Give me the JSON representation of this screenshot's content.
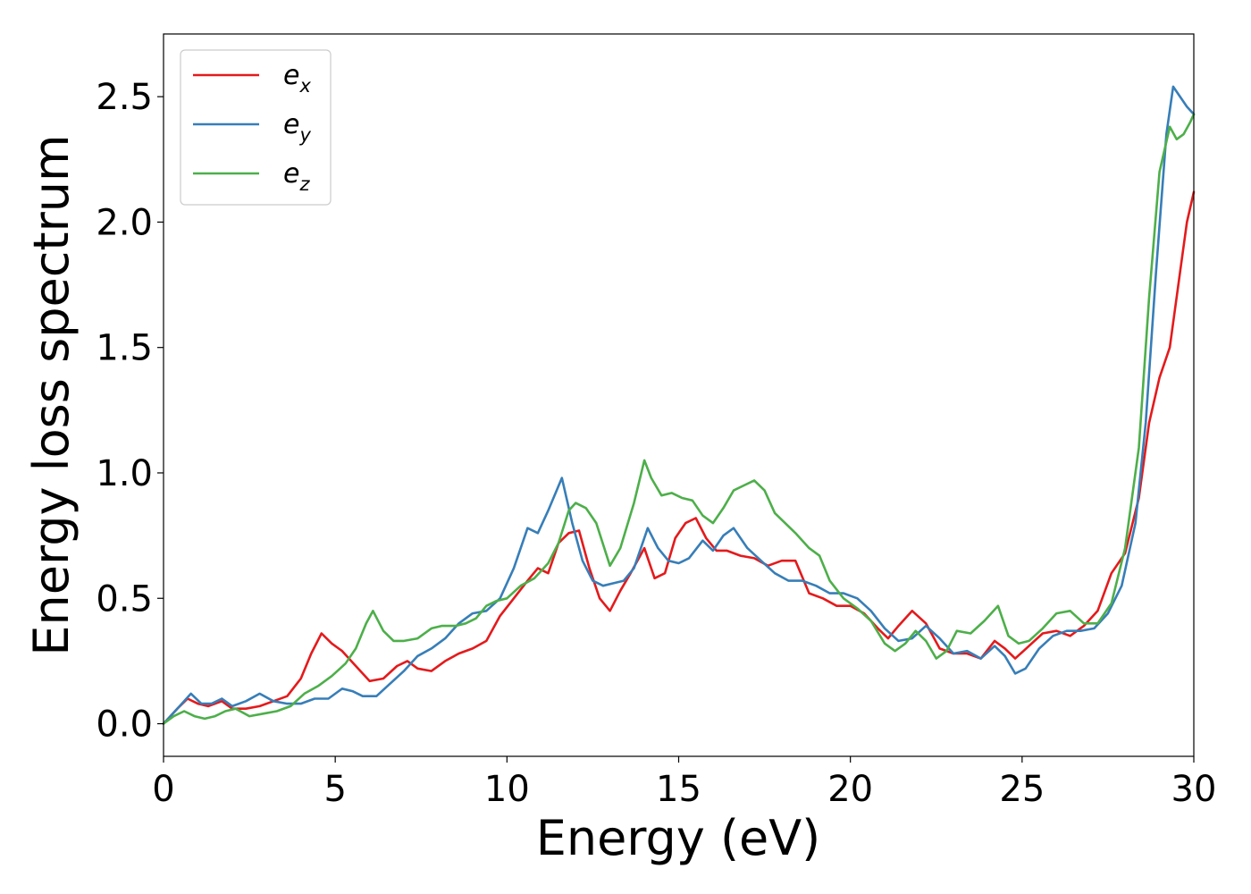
{
  "chart_data": {
    "type": "line",
    "title": "",
    "xlabel": "Energy (eV)",
    "ylabel": "Energy loss spectrum",
    "xlim": [
      0,
      30
    ],
    "ylim": [
      -0.13,
      2.75
    ],
    "xticks": [
      0,
      5,
      10,
      15,
      20,
      25,
      30
    ],
    "xtick_labels": [
      "0",
      "5",
      "10",
      "15",
      "20",
      "25",
      "30"
    ],
    "yticks": [
      0,
      0.5,
      1.0,
      1.5,
      2.0,
      2.5
    ],
    "ytick_labels": [
      "0.0",
      "0.5",
      "1.0",
      "1.5",
      "2.0",
      "2.5"
    ],
    "grid": false,
    "legend_position": "top-left",
    "series": [
      {
        "name": "e_x",
        "legend_base": "e",
        "legend_sub": "x",
        "color": "#e41a1c",
        "x": [
          0,
          0.4,
          0.7,
          1.0,
          1.3,
          1.7,
          2.0,
          2.4,
          2.8,
          3.2,
          3.6,
          4.0,
          4.3,
          4.6,
          4.9,
          5.2,
          5.6,
          6.0,
          6.4,
          6.8,
          7.1,
          7.4,
          7.8,
          8.2,
          8.6,
          9.0,
          9.4,
          9.8,
          10.2,
          10.6,
          10.9,
          11.2,
          11.5,
          11.8,
          12.1,
          12.4,
          12.7,
          13.0,
          13.3,
          13.6,
          14.0,
          14.3,
          14.6,
          14.9,
          15.2,
          15.5,
          15.8,
          16.1,
          16.4,
          16.8,
          17.2,
          17.6,
          18.0,
          18.4,
          18.8,
          19.2,
          19.6,
          20.0,
          20.4,
          20.8,
          21.1,
          21.4,
          21.8,
          22.2,
          22.6,
          23.0,
          23.4,
          23.8,
          24.2,
          24.5,
          24.8,
          25.2,
          25.6,
          26.0,
          26.4,
          26.8,
          27.2,
          27.6,
          28.0,
          28.4,
          28.7,
          29.0,
          29.3,
          29.6,
          29.8,
          30.0
        ],
        "values": [
          0.0,
          0.06,
          0.1,
          0.08,
          0.07,
          0.09,
          0.06,
          0.06,
          0.07,
          0.09,
          0.11,
          0.18,
          0.28,
          0.36,
          0.32,
          0.29,
          0.23,
          0.17,
          0.18,
          0.23,
          0.25,
          0.22,
          0.21,
          0.25,
          0.28,
          0.3,
          0.33,
          0.43,
          0.5,
          0.57,
          0.62,
          0.6,
          0.72,
          0.76,
          0.77,
          0.62,
          0.5,
          0.45,
          0.53,
          0.6,
          0.7,
          0.58,
          0.6,
          0.74,
          0.8,
          0.82,
          0.74,
          0.69,
          0.69,
          0.67,
          0.66,
          0.63,
          0.65,
          0.65,
          0.52,
          0.5,
          0.47,
          0.47,
          0.44,
          0.38,
          0.34,
          0.39,
          0.45,
          0.4,
          0.3,
          0.28,
          0.28,
          0.26,
          0.33,
          0.3,
          0.26,
          0.31,
          0.36,
          0.37,
          0.35,
          0.39,
          0.45,
          0.6,
          0.68,
          0.9,
          1.2,
          1.38,
          1.5,
          1.8,
          2.0,
          2.12
        ]
      },
      {
        "name": "e_y",
        "legend_base": "e",
        "legend_sub": "y",
        "color": "#377eb8",
        "x": [
          0,
          0.4,
          0.8,
          1.1,
          1.4,
          1.7,
          2.0,
          2.4,
          2.8,
          3.2,
          3.6,
          4.0,
          4.4,
          4.8,
          5.2,
          5.5,
          5.8,
          6.2,
          6.6,
          7.0,
          7.4,
          7.8,
          8.2,
          8.6,
          9.0,
          9.4,
          9.8,
          10.2,
          10.6,
          10.9,
          11.2,
          11.6,
          11.9,
          12.2,
          12.5,
          12.8,
          13.1,
          13.4,
          13.7,
          14.1,
          14.4,
          14.7,
          15.0,
          15.3,
          15.7,
          16.0,
          16.3,
          16.6,
          17.0,
          17.4,
          17.8,
          18.2,
          18.6,
          19.0,
          19.4,
          19.8,
          20.2,
          20.6,
          21.0,
          21.4,
          21.8,
          22.2,
          22.6,
          23.0,
          23.4,
          23.8,
          24.2,
          24.5,
          24.8,
          25.1,
          25.5,
          25.9,
          26.3,
          26.7,
          27.1,
          27.5,
          27.9,
          28.3,
          28.6,
          28.9,
          29.2,
          29.4,
          29.6,
          29.8,
          30.0
        ],
        "values": [
          0.0,
          0.06,
          0.12,
          0.08,
          0.08,
          0.1,
          0.07,
          0.09,
          0.12,
          0.09,
          0.08,
          0.08,
          0.1,
          0.1,
          0.14,
          0.13,
          0.11,
          0.11,
          0.16,
          0.21,
          0.27,
          0.3,
          0.34,
          0.4,
          0.44,
          0.45,
          0.5,
          0.62,
          0.78,
          0.76,
          0.85,
          0.98,
          0.8,
          0.65,
          0.57,
          0.55,
          0.56,
          0.57,
          0.62,
          0.78,
          0.7,
          0.65,
          0.64,
          0.66,
          0.73,
          0.69,
          0.75,
          0.78,
          0.7,
          0.65,
          0.6,
          0.57,
          0.57,
          0.55,
          0.52,
          0.52,
          0.5,
          0.45,
          0.38,
          0.33,
          0.34,
          0.39,
          0.34,
          0.28,
          0.29,
          0.26,
          0.31,
          0.27,
          0.2,
          0.22,
          0.3,
          0.35,
          0.37,
          0.37,
          0.38,
          0.44,
          0.55,
          0.8,
          1.2,
          1.8,
          2.35,
          2.54,
          2.5,
          2.46,
          2.43
        ]
      },
      {
        "name": "e_z",
        "legend_base": "e",
        "legend_sub": "z",
        "color": "#4daf4a",
        "x": [
          0,
          0.3,
          0.6,
          0.9,
          1.2,
          1.5,
          1.8,
          2.1,
          2.5,
          2.9,
          3.3,
          3.7,
          4.1,
          4.5,
          4.9,
          5.3,
          5.6,
          5.9,
          6.1,
          6.4,
          6.7,
          7.0,
          7.4,
          7.8,
          8.1,
          8.5,
          8.8,
          9.1,
          9.4,
          9.7,
          10.0,
          10.4,
          10.8,
          11.2,
          11.5,
          11.8,
          12.0,
          12.3,
          12.6,
          13.0,
          13.3,
          13.7,
          14.0,
          14.2,
          14.5,
          14.8,
          15.1,
          15.4,
          15.7,
          16.0,
          16.3,
          16.6,
          16.9,
          17.2,
          17.5,
          17.8,
          18.1,
          18.4,
          18.8,
          19.1,
          19.4,
          19.8,
          20.2,
          20.6,
          21.0,
          21.3,
          21.6,
          21.9,
          22.2,
          22.5,
          22.8,
          23.1,
          23.5,
          23.9,
          24.3,
          24.6,
          24.9,
          25.2,
          25.6,
          26.0,
          26.4,
          26.8,
          27.2,
          27.6,
          28.0,
          28.4,
          28.7,
          29.0,
          29.3,
          29.5,
          29.7,
          29.9,
          30.0
        ],
        "values": [
          0.0,
          0.03,
          0.05,
          0.03,
          0.02,
          0.03,
          0.05,
          0.06,
          0.03,
          0.04,
          0.05,
          0.07,
          0.12,
          0.15,
          0.19,
          0.24,
          0.3,
          0.4,
          0.45,
          0.37,
          0.33,
          0.33,
          0.34,
          0.38,
          0.39,
          0.39,
          0.4,
          0.42,
          0.47,
          0.49,
          0.5,
          0.55,
          0.58,
          0.64,
          0.72,
          0.85,
          0.88,
          0.86,
          0.8,
          0.63,
          0.7,
          0.88,
          1.05,
          0.98,
          0.91,
          0.92,
          0.9,
          0.89,
          0.83,
          0.8,
          0.86,
          0.93,
          0.95,
          0.97,
          0.93,
          0.84,
          0.8,
          0.76,
          0.7,
          0.67,
          0.57,
          0.5,
          0.46,
          0.41,
          0.32,
          0.29,
          0.32,
          0.37,
          0.33,
          0.26,
          0.29,
          0.37,
          0.36,
          0.41,
          0.47,
          0.35,
          0.32,
          0.33,
          0.38,
          0.44,
          0.45,
          0.4,
          0.4,
          0.48,
          0.7,
          1.1,
          1.7,
          2.2,
          2.38,
          2.33,
          2.35,
          2.4,
          2.43
        ]
      }
    ]
  }
}
